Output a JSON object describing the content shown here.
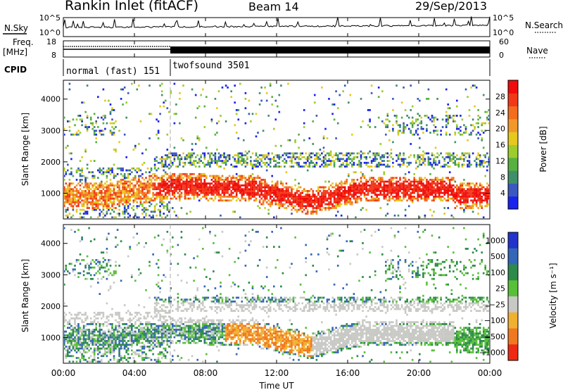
{
  "header": {
    "station": "Rankin Inlet (fitACF)",
    "beam": "Beam 14",
    "date": "29/Sep/2013"
  },
  "labels": {
    "nsky": "N.Sky",
    "nsearch": "N.Search",
    "freq": "Freq.",
    "freq_unit": "[MHz]",
    "nave": "Nave",
    "cpid": "CPID",
    "noise_top": "10^5",
    "noise_bot": "10^0",
    "freq_top": "18",
    "freq_bot": "8",
    "nave_top": "60",
    "nave_bot": "0"
  },
  "cpid_segments": [
    {
      "name": "normal (fast) 151",
      "start": "00:00",
      "end": "06:00"
    },
    {
      "name": "twofsound 3501",
      "start": "06:00",
      "end": "24:00"
    }
  ],
  "chart_data": [
    {
      "type": "heatmap",
      "parameter": "Power",
      "xlabel": "",
      "ylabel": "Slant Range [km]",
      "x_ticks": [
        "00:00",
        "04:00",
        "08:00",
        "12:00",
        "16:00",
        "20:00",
        "00:00"
      ],
      "x_range_hours": [
        0,
        24
      ],
      "y_ticks": [
        1000,
        2000,
        3000,
        4000
      ],
      "y_range": [
        180,
        4600
      ],
      "colorbar": {
        "label": "Power [dB]",
        "ticks": [
          4,
          8,
          12,
          16,
          20,
          24,
          28
        ],
        "range": [
          0,
          32
        ],
        "colors": [
          "#1a22ee",
          "#3a58c0",
          "#3f8f6a",
          "#58b040",
          "#9ccd2c",
          "#e6c81e",
          "#f2982a",
          "#f46c1e",
          "#f23818",
          "#f00c0c"
        ]
      }
    },
    {
      "type": "heatmap",
      "parameter": "Velocity",
      "xlabel": "Time UT",
      "ylabel": "Slant Range [km]",
      "x_ticks": [
        "00:00",
        "04:00",
        "08:00",
        "12:00",
        "16:00",
        "20:00",
        "00:00"
      ],
      "x_range_hours": [
        0,
        24
      ],
      "y_ticks": [
        1000,
        2000,
        3000,
        4000
      ],
      "y_range": [
        180,
        4600
      ],
      "colorbar": {
        "label": "Velocity [m s⁻¹]",
        "ticks": [
          "1000",
          "500",
          "100",
          "25",
          "−25",
          "−100",
          "−500",
          "−1000"
        ],
        "colors": [
          "#2233cc",
          "#3466b8",
          "#2c8a4a",
          "#58c038",
          "#c8c8c4",
          "#f0b030",
          "#f07820",
          "#ee2a14"
        ]
      }
    }
  ]
}
